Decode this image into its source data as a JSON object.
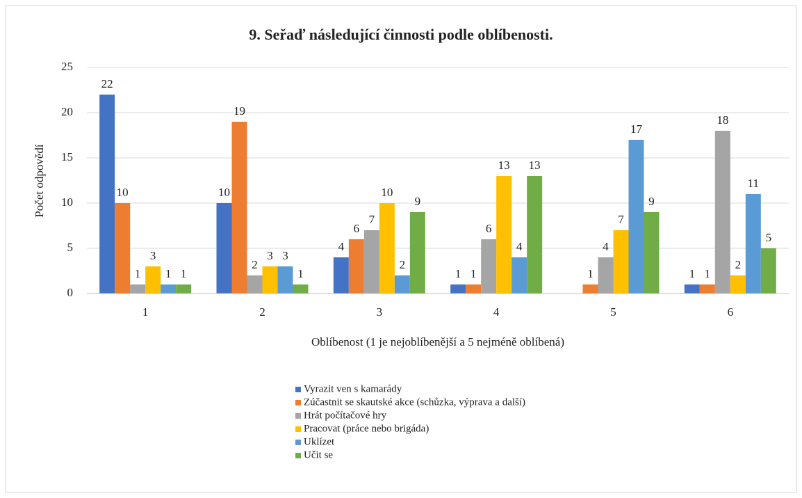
{
  "chart_data": {
    "type": "bar",
    "title": "9. Seřaď následující činnosti podle oblíbenosti.",
    "xlabel": "Oblíbenost  (1 je nejoblíbenější  a 5 nejméně  oblíbená)",
    "ylabel": "Počet odpovědí",
    "categories": [
      "1",
      "2",
      "3",
      "4",
      "5",
      "6"
    ],
    "series": [
      {
        "name": "Vyrazit ven s kamarády",
        "color": "#4472c4",
        "values": [
          22,
          10,
          4,
          1,
          null,
          1
        ]
      },
      {
        "name": "Zúčastnit se skautské akce (schůzka, výprava a další)",
        "color": "#ed7d31",
        "values": [
          10,
          19,
          6,
          1,
          1,
          1
        ]
      },
      {
        "name": "Hrát počítačové hry",
        "color": "#a5a5a5",
        "values": [
          1,
          2,
          7,
          6,
          4,
          18
        ]
      },
      {
        "name": "Pracovat (práce nebo brigáda)",
        "color": "#ffc000",
        "values": [
          3,
          3,
          10,
          13,
          7,
          2
        ]
      },
      {
        "name": "Uklízet",
        "color": "#5b9bd5",
        "values": [
          1,
          3,
          2,
          4,
          17,
          11
        ]
      },
      {
        "name": "Učit se",
        "color": "#70ad47",
        "values": [
          1,
          1,
          9,
          13,
          9,
          5
        ]
      }
    ],
    "ylim": [
      0,
      25
    ],
    "yticks": [
      0,
      5,
      10,
      15,
      20,
      25
    ],
    "grid": true,
    "legend": "bottom"
  }
}
